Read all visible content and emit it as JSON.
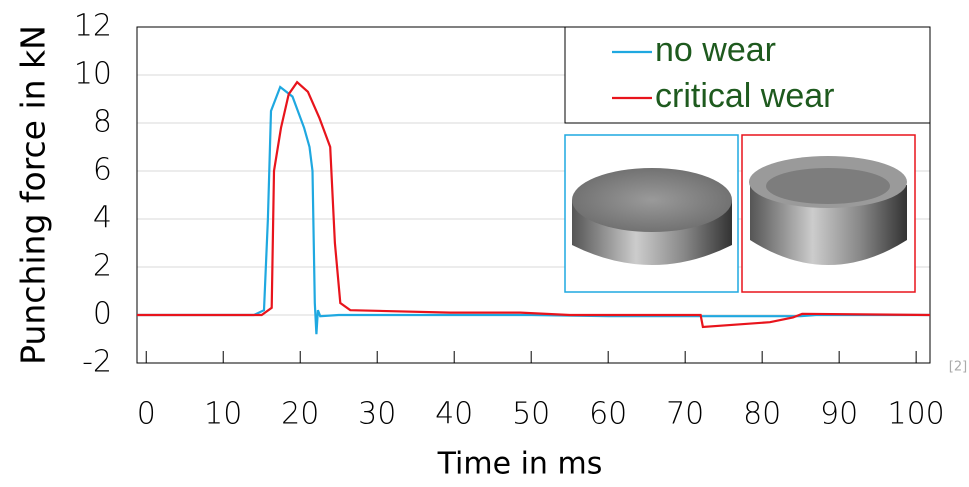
{
  "chart_data": {
    "type": "line",
    "x_label": "Time in ms",
    "y_label": "Punching force in kN",
    "xlim": [
      -1.2,
      101.8
    ],
    "ylim": [
      -2,
      12
    ],
    "xticks": [
      0,
      10,
      20,
      30,
      40,
      50,
      60,
      70,
      80,
      90,
      100
    ],
    "yticks": [
      -2,
      0,
      2,
      4,
      6,
      8,
      10,
      12
    ],
    "grid": true,
    "legend_position": "upper right",
    "legend_text_color": "#1e5a1e",
    "annotation": "[2]",
    "series": [
      {
        "name": "no wear",
        "color": "#1fa8e0",
        "x": [
          -1.2,
          14,
          15.3,
          15.8,
          16.2,
          17.4,
          19,
          20.5,
          21.2,
          21.6,
          21.9,
          22.1,
          22.3,
          22.6,
          25,
          50,
          60,
          85,
          87,
          101.8
        ],
        "values": [
          0,
          0,
          0.2,
          4,
          8.5,
          9.5,
          9.1,
          7.8,
          7,
          6,
          0.5,
          -0.8,
          0.2,
          -0.05,
          0,
          0,
          -0.05,
          -0.05,
          0,
          0
        ]
      },
      {
        "name": "critical wear",
        "color": "#e8141c",
        "x": [
          -1.2,
          15,
          16.3,
          16.6,
          17.5,
          18.5,
          19.6,
          21,
          22.5,
          23.9,
          24.5,
          25.2,
          26.5,
          39.5,
          48.6,
          55,
          72,
          72.3,
          81,
          84,
          85.2,
          101.8
        ],
        "values": [
          0,
          0,
          0.3,
          6,
          7.8,
          9.2,
          9.7,
          9.3,
          8.2,
          7,
          3,
          0.5,
          0.2,
          0.1,
          0.1,
          0,
          0,
          -0.5,
          -0.3,
          -0.1,
          0.05,
          0
        ]
      }
    ]
  }
}
